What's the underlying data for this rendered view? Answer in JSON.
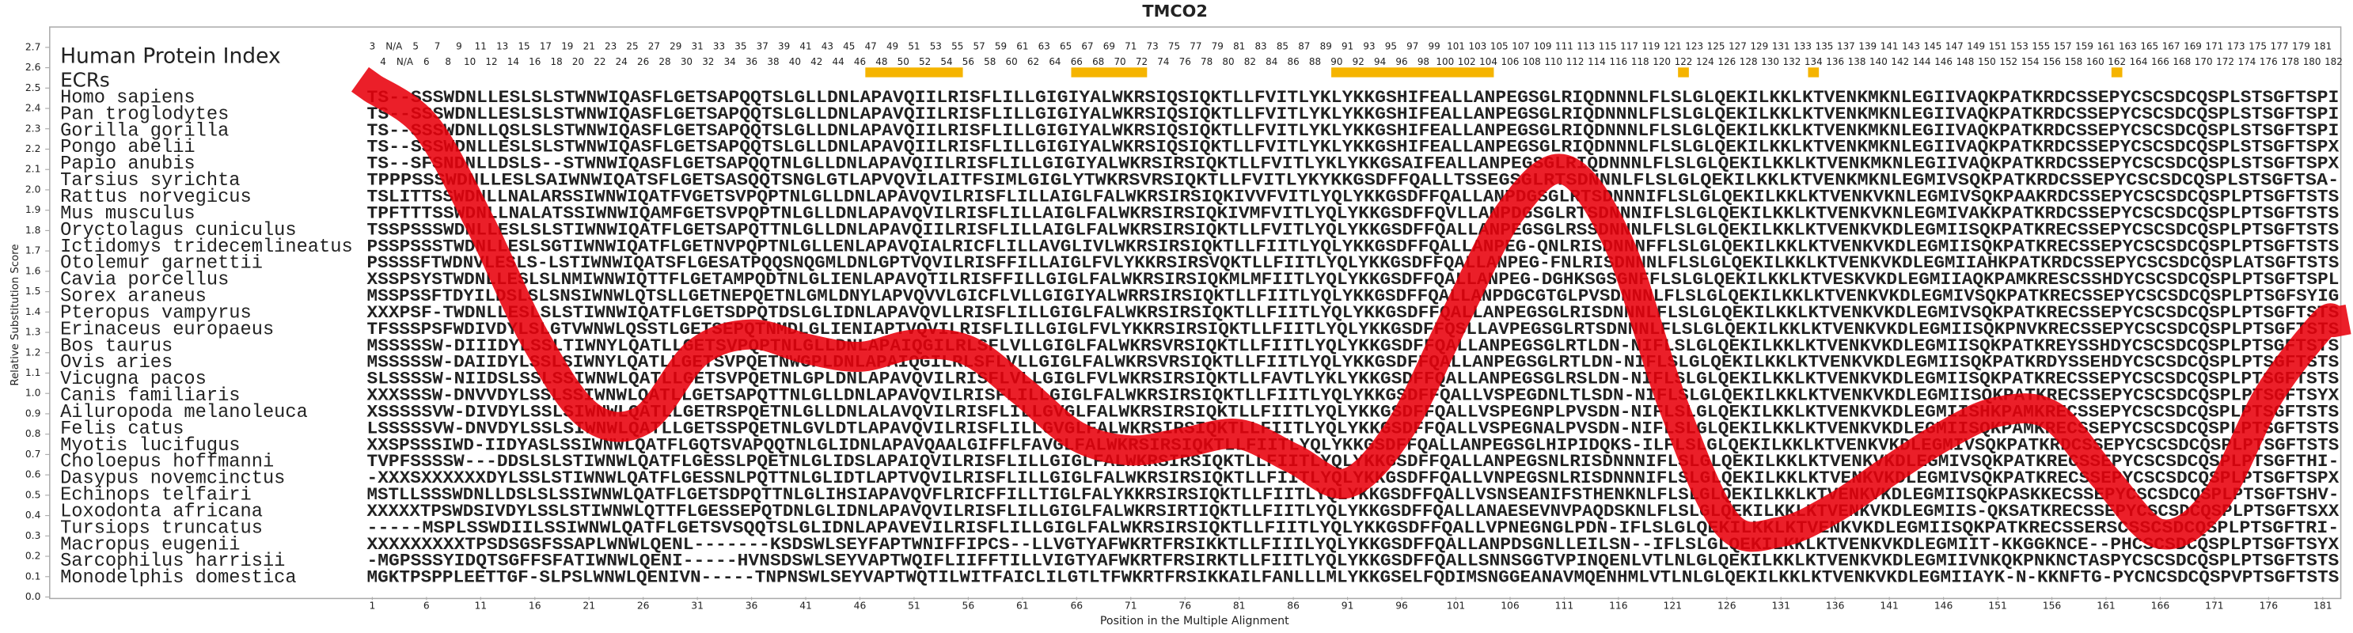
{
  "chart_data": {
    "type": "line",
    "title": "TMCO2",
    "ylabel": "Relative Substitution Score",
    "xlabel": "Position in the Multiple Alignment",
    "color": "#e8000b",
    "xlim": [
      1,
      182
    ],
    "ylim": [
      0,
      2.8
    ],
    "xticks": [
      1,
      6,
      11,
      16,
      21,
      26,
      31,
      36,
      41,
      46,
      51,
      56,
      61,
      66,
      71,
      76,
      81,
      86,
      91,
      96,
      101,
      106,
      111,
      116,
      121,
      126,
      131,
      136,
      141,
      146,
      151,
      156,
      161,
      166,
      171,
      176,
      181
    ],
    "yticks": [
      {
        "value": 0,
        "label": "0.0"
      },
      0.1,
      0.2,
      0.3,
      0.4,
      0.5,
      0.6,
      0.7,
      0.8,
      0.9,
      {
        "value": 1,
        "label": "1.0"
      },
      1.1,
      1.2,
      1.3,
      1.4,
      1.5,
      1.6,
      1.7,
      1.8,
      1.9,
      {
        "value": 2,
        "label": "2.0"
      },
      2.1,
      2.2,
      2.3,
      2.4,
      2.5,
      2.6,
      2.7
    ],
    "x": [
      1,
      6,
      11,
      16,
      21,
      26,
      31,
      36,
      41,
      46,
      51,
      56,
      61,
      66,
      71,
      76,
      81,
      86,
      91,
      96,
      101,
      106,
      111,
      116,
      121,
      126,
      131,
      136,
      141,
      146,
      151,
      156,
      161,
      166,
      171,
      176,
      181,
      182
    ],
    "values": [
      2.5,
      2.31,
      1.83,
      1.27,
      0.89,
      0.87,
      1.2,
      1.29,
      1.22,
      1.18,
      1.24,
      1.21,
      1.01,
      0.79,
      0.72,
      0.76,
      0.8,
      0.68,
      0.56,
      0.84,
      1.38,
      1.89,
      2.1,
      1.74,
      0.95,
      0.36,
      0.32,
      0.44,
      0.62,
      0.79,
      0.91,
      0.89,
      0.58,
      0.31,
      0.47,
      0.99,
      1.34,
      1.35
    ],
    "human_protein_index": {
      "label": "Human Protein Index",
      "values": [
        3,
        4,
        "N/A",
        "N/A",
        5,
        6,
        7,
        8,
        9,
        10,
        11,
        12,
        13,
        14,
        15,
        16,
        17,
        18,
        19,
        20,
        21,
        22,
        23,
        24,
        25,
        26,
        27,
        28,
        29,
        30,
        31,
        32,
        33,
        34,
        35,
        36,
        37,
        38,
        39,
        40,
        41,
        42,
        43,
        44,
        45,
        46,
        47,
        48,
        49,
        50,
        51,
        52,
        53,
        54,
        55,
        56,
        57,
        58,
        59,
        60,
        61,
        62,
        63,
        64,
        65,
        66,
        67,
        68,
        69,
        70,
        71,
        72,
        73,
        74,
        75,
        76,
        77,
        78,
        79,
        80,
        81,
        82,
        83,
        84,
        85,
        86,
        87,
        88,
        89,
        90,
        91,
        92,
        93,
        94,
        95,
        96,
        97,
        98,
        99,
        100,
        101,
        102,
        103,
        104,
        105,
        106,
        107,
        108,
        109,
        110,
        111,
        112,
        113,
        114,
        115,
        116,
        117,
        118,
        119,
        120,
        121,
        122,
        123,
        124,
        125,
        126,
        127,
        128,
        129,
        130,
        131,
        132,
        133,
        134,
        135,
        136,
        137,
        138,
        139,
        140,
        141,
        142,
        143,
        144,
        145,
        146,
        147,
        148,
        149,
        150,
        151,
        152,
        153,
        154,
        155,
        156,
        157,
        158,
        159,
        160,
        161,
        162,
        163,
        164,
        165,
        166,
        167,
        168,
        169,
        170,
        171,
        172,
        173,
        174,
        175,
        176,
        177,
        178,
        179,
        180,
        181,
        182
      ]
    },
    "ecrs": {
      "label": "ECRs",
      "color": "#f5b400",
      "ranges": [
        [
          47,
          55
        ],
        [
          66,
          72
        ],
        [
          90,
          104
        ],
        [
          122,
          122
        ],
        [
          134,
          134
        ],
        [
          162,
          162
        ]
      ]
    },
    "alignment": [
      {
        "name": "Homo sapiens",
        "sequence": "TS--SSSWDNLLESLSLSTWNWIQASFLGETSAPQQTSLGLLDNLAPAVQIILRISFLILLGIGIYALWKRSIQSIQKTLLFVITLYKLYKKGSHIFEALLANPEGSGLRIQDNNNLFLSLGLQEKILKKLKTVENKMKNLEGIIVAQKPATKRDCSSEPYCSCSDCQSPLSTSGFTSPI"
      },
      {
        "name": "Pan troglodytes",
        "sequence": "TS--SSSWDNLLESLSLSTWNWIQASFLGETSAPQQTSLGLLDNLAPAVQIILRISFLILLGIGIYALWKRSIQSIQKTLLFVITLYKLYKKGSHIFEALLANPEGSGLRIQDNNNLFLSLGLQEKILKKLKTVENKMKNLEGIIVAQKPATKRDCSSEPYCSCSDCQSPLSTSGFTSPI"
      },
      {
        "name": "Gorilla gorilla",
        "sequence": "TS--SSSWDNLLQSLSLSTWNWIQASFLGETSAPQQTSLGLLDNLAPAVQIILRISFLILLGIGIYALWKRSIQSIQKTLLFVITLYKLYKKGSHIFEALLANPEGSGLRIQDNNNLFLSLGLQEKILKKLKTVENKMKNLEGIIVAQKPATKRDCSSEPYCSCSDCQSPLSTSGFTSPI"
      },
      {
        "name": "Pongo abelii",
        "sequence": "TS--SSSWDNLLESLSLSTWNWIQASFLGETSAPQQTSLGLLDNLAPAVQIILRISFLILLGIGIYALWKRSIQSIQKTLLFVITLYKLYKKGSHIFEALLANPEGSGLRIQDNNNLFLSLGLQEKILKKLKTVENKMKNLEGIIVAQKPATKRDCSSEPYCSCSDCQSPLSTSGFTSPX"
      },
      {
        "name": "Papio anubis",
        "sequence": "TS--SFSNDNLLDSLS--STWNWIQASFLGETSAPQQTNLGLLDNLAPAVQIILRISFLILLGIGIYALWKRSIRSIQKTLLFVITLYKLYKKGSAIFEALLANPEGSGLRIQDNNNLFLSLGLQEKILKKLKTVENKMKNLEGIIVAQKPATKRDCSSEPYCSCSDCQSPLSTSGFTSPX"
      },
      {
        "name": "Tarsius syrichta",
        "sequence": "TPPPSSSWDNLLESLSAIWNWIQATSFLGETSASQQTSNGLGTLAPVQVILAITFSIMLGIGLYTWKRSVRSIQKTLLFVITLYKYKKGSDFFQALLTSSEGSGLRTSDNNNLFLSLGLQEKILKKLKTVENKMKNLEGMIVSQKPATKRDCSSEPYCSCSDCQSPLSTSGFTSA-"
      },
      {
        "name": "Rattus norvegicus",
        "sequence": "TSLITTSSWDNLLNALARSSIWNWIQATFVGETSVPQPTNLGLLDNLAPAVQVILRISFLILLAIGLFALWKRSIRSIQKIVVFVITLYQLYKKGSDFFQALLANPDGSGLRTSDNNNIFLSLGLQEKILKKLKTVENKVKNLEGMIVSQKPAAKRDCSSEPYCSCSDCQSPLPTSGFTSTS"
      },
      {
        "name": "Mus musculus",
        "sequence": "TPFTTTSSWDNLLNALATSSIWNWIQAMFGETSVPQPTNLGLLDNLAPAVQVILRISFLILLAIGLFALWKRSIRSIQKIVMFVITLYQLYKKGSDFFQVLLANPDGSGLRTSDNNNIFLSLGLQEKILKKLKTVENKVKNLEGMIVAKKPATKRDCSSEPYCSCSDCQSPLPTSGFTSTS"
      },
      {
        "name": "Oryctolagus cuniculus",
        "sequence": "TSSPSSSWDNLLESLSLSTIWNWIQATFLGETSAPQTTNLGLLDNLAPAVQIILRISFLILLAIGLFALWKRSIRSIQKTLLFVITLYQLYKKGSDFFQALLANPEGSGLRSSDNNNLFLSLGLQEKILKKLKTVENKVKDLEGMIISQKPATKRECSSEPYCSCSDCQSPLPTSGFTSTS"
      },
      {
        "name": "Ictidomys tridecemlineatus",
        "sequence": "PSSPSSSTWDNLLESLSGTIWNWIQATFLGETNVPQPTNLGLLENLAPAVQIALRICFLILLAVGLIVLWKRSIRSIQKTLLFIITLYQLYKKGSDFFQALLANPEG-QNLRISDNNNFFLSLGLQEKILKKLKTVENKVKDLEGMIISQKPATKRECSSEPYCSCSDCQSPLPTSGFTSTS"
      },
      {
        "name": "Otolemur garnettii",
        "sequence": "PSSSSFTWDNVLESLS-LSTIWNWIQATSFLGESATPQQSNQGMLDNLGPTVQVILRISFFILLAIGLFVLYKKRSIRSVQKTLLFIITLYQLYKKGSDFFQALLANPEG-FNLRISDNNNLFLSLGLQEKILKKLKTVENKVKDLEGMIIAHKPATKRDCSSEPYCSCSDCQSPLATSGFTSTS"
      },
      {
        "name": "Cavia porcellus",
        "sequence": "XSSPSYSTWDNLLESLSLNMIWNWIQTTFLGETAMPQDTNLGLIENLAPAVQTILRISFFILLGIGLFALWKRSIRSIQKMLMFIITLYQLYKKGSDFFQALLANPEG-DGHKSGSGNFFLSLGLQEKILKKLKTVESKVKDLEGMIIAQKPAMKRESCSSHDYCSCSDCQSPLPTSGFTSPL"
      },
      {
        "name": "Sorex araneus",
        "sequence": "MSSPSSFTDYILDSLSLSNSIWNWLQTSLLGETNEPQETNLGMLDNYLAPVQVVLGICFLVLLGIGIYALWRRSIRSIQKTLLFIITLYQLYKKGSDFFQALLANPDGCGTGLPVSDNNNLFLSLGLQEKILKKLKTVENKVKDLEGMIVSQKPATKRECSSEPYCSCSDCQSPLPTSGFSYIG"
      },
      {
        "name": "Pteropus vampyrus",
        "sequence": "XXXPSF-TWDNLLESLSLSTIWNWIQATFLGETSDPQTDSLGLIDNLAPAVQVLLRISFLILLGIGLFALWKRSIRSIQKTLLFIITLYQLYKKGSDFFQALLANPEGSGLRISDNNNLFLSLGLQEKILKKLKTVENKVKDLEGMIVSQKPATKRECSSEPYCSCSDCQSPLPTSGFTSTS"
      },
      {
        "name": "Erinaceus europaeus",
        "sequence": "TFSSSPSFWDIVDYLSLGTVWNWLQSSTLGETSEPQTNMDLGLIENIAPTVQVILRISFLILLGIGLFVLYKKRSIRSIQKTLLFIITLYQLYKKGSDFFQSLLAVPEGSGLRTSDNNNLFLSLGLQEKILKKLKTVENKVKDLEGMIISQKPNVKRECSSEPYCSCSDCQSPLPTSGFTSTS"
      },
      {
        "name": "Bos taurus",
        "sequence": "MSSSSSW-DIIIDYLSSLTIWNYLQATLLGETSVPQPTNLGLLDNLAPAIQGILRLSFLVLLGIGLFALWKRSVRSIQKTLLFIITLYQLYKKGSDFFQALLANPEGSGLRTLDN-NIFLSLGLQEKILKKLKTVENKVKDLEGMIISQKPATKREYSSHDYCSCSDCQSPLPTSGFTSTS"
      },
      {
        "name": "Ovis aries",
        "sequence": "MSSSSSW-DAIIDYLSSLSIWNYLQATLLGETSVPQETNWGPLDNLAPAIQGILRLSFLVLLGIGLFALWKRSVRSIQKTLLFIITLYQLYKKGSDFFQALLANPEGSGLRTLDN-NIFLSLGLQEKILKKLKTVENKVKDLEGMIISQKPATKRDYSSEHDYCSCSDCQSPLPTSGFTSTS"
      },
      {
        "name": "Vicugna pacos",
        "sequence": "SLSSSSW-NIIDSLSSLSSIWNWLQATLLGETSVPQETNLGPLDNLAPAVQVILRISFLVLLGIGLFVLWKRSIRSIQKTLLFAVTLYKLYKKGSDFFQALLANPEGSGLRSLDN-NIFLSLGLQEKILKKLKTVENKVKDLEGMIISQKPATKRECSSEPYCSCSDCQSPLPTSGFTSTS"
      },
      {
        "name": "Canis familiaris",
        "sequence": "XXXSSSW-DNVVDYLSSLSSIWNWLQATLLGETSAPQTTNLGLLDNLAPAVQVILRISFLILLGIGLFALWKRSIRSIQKTLLFIITLYQLYKKGSDFFQALLVSPEGDNLTLSDN-NIFLSLGLQEKILKKLKTVENKVKDLEGMIISQKPATKRECSSEPYCSCSDCQSPLPTSGFTSYX"
      },
      {
        "name": "Ailuropoda melanoleuca",
        "sequence": "XSSSSSVW-DIVDYLSSLSIWNWLQATLLGETRSPQETNLGLLDNLALAVQVILRISFLILLGVGLFALWKRSIRSIQKTLLFIITLYQLYKKGSDFFQALLVSPEGNPLPVSDN-NIFLSLGLQEKILKKLKTVENKVKDLEGMIISHKPAMKRECSSEPYCSCSDCQSPLPTSGFTSTS"
      },
      {
        "name": "Felis catus",
        "sequence": "LSSSSSVW-DNVDYLSSLSIWNWLQATLLGETSSPQETNLGVLDTLAPAVQVILRISFLILLGVGLFALWKRSIRSIQKTLLFIITLYQLYKKGSDFFQALLVSPEGNALPVSDN-NIFLSLGLQEKILKKLKTVENKVKDLEGMIISQKPAMKRECSSEPYCSCSDCQSPLPTSGFTSTS"
      },
      {
        "name": "Myotis lucifugus",
        "sequence": "XXSPSSSIWD-IIDYASLSSIWNWLQATFLGQTSVAPQQTNLGLIDNLAPAVQAALGIFFLFAVGLFALWKRSIRSIQKTLLFIITLYQLYKKGSDFFQALLANPEGSGLHIPIDQKS-ILFLSLGLQEKILKKLKTVENKVKDLEGMIVSQKPATKRDCSSEPYCSCSDCQSPLPTSGFTSTS"
      },
      {
        "name": "Choloepus hoffmanni",
        "sequence": "TVPFSSSSW---DDSLSLSTIWNWLQATFLGESSLPQETNLGLIDSLAPAIQVILRISFLILLGIGLFALWKRSIRSIQKTLLFIITLYQLYKKGSDFFQALLANPEGSNLRISDNNNIFLSLGLQEKILKKLKTVENKVKDLEGMIVSQKPATKRECSSEPYCSCSDCQSPLPTSGFTHI-"
      },
      {
        "name": "Dasypus novemcinctus",
        "sequence": "-XXXSXXXXXXDYLSSLSTIWNWLQATFLGESSNLPQTTNLGLIDTLAPTVQVILRISFLILLGIGLFALWKRSIRSIQKTLLFIITLYQLYKKGSDFFQALLVNPEGSNLRISDNNNIFLSLGLQEKILKKLKTVENKVKDLEGMIVSQKPATKRECSSEPYCSCSDCQSPLPTSGFTSPX"
      },
      {
        "name": "Echinops telfairi",
        "sequence": "MSTLLSSSWDNLLDSLSLSSIWNWLQATFLGETSDPQTTNLGLIHSIAPAVQVFLRICFFILLTIGLFALYKKRSIRSIQKTLLFIITLYQLYKKGSDFFQALLVSNSEANIFSTHENKNLFLSLGLQEKILKKLKTVENKVKDLEGMIISQKPASKKECSSEPYCSCSDCQSPLPTSGFTSHV-"
      },
      {
        "name": "Loxodonta africana",
        "sequence": "XXXXXTPSWDSIVDYLSSLSTIWNWLQTTFLGESSEPQTDNLGLIDNLAPAVQVILRISFLILLGIGLFALWKRSIRTIQKTLLFIITLYQLYKKGSDFFQALLANAESEVNVPAQDSKNLFLSLGLQEKILKKLKTVENKVKDLEGMIIS-QKSATKRECSSEPYCSCSDCQSPLPTSGFTSXX"
      },
      {
        "name": "Tursiops truncatus",
        "sequence": "-----MSPLSSWDIILSSIWNWLQATFLGETSVSQQTSLGLIDNLAPAVEVILRISFLILLGIGLFALWKRSIRSIQKTLLFIITLYQLYKKGSDFFQALLVPNEGNGLPDN-IFLSLGLQEKILKKLKTVENKVKDLEGMIISQKPATKRECSSERSCSSCSDCQSPLPTSGFTRI-"
      },
      {
        "name": "Macropus eugenii",
        "sequence": "XXXXXXXXXTPSDSGSFSSAPLWNWLQENL-------KSDSWLSEYFAPTWNIFFIPCS--LLVGTYAFWKRTFRSIKKTLLFIIILYQLYKKGSDFFQALLANPDSGNLLEILSN--IFLSLGLQEKILKKLKTVENKVKDLEGMIIT-KKGGKNCE--PHCSCSDCQSPLPTSGFTSYX"
      },
      {
        "name": "Sarcophilus harrisii",
        "sequence": "-MGPSSSYIDQTSGFFSFATIWNWLQENI-----HVNSDSWLSEYVAPTWQIFLIIFFTILLVIGTYAFWKRTFRSIRKTLLFIITLYQLYKKGSDFFQALLSNNSGGTVPINQENLVTLNLGLQEKILKKLKTVENKVKDLEGMIIVNKQKPNKNCTASPYCSCSDCQSPLPTSGFTSTS"
      },
      {
        "name": "Monodelphis domestica",
        "sequence": "MGKTPSPPLEETTGF-SLPSLWNWLQENIVN-----TNPNSWLSEYVAPTWQTILWITFAICLILGTLTFWKRTFRSIKKAILFANLLLMLYKKGSELFQDIMSNGGEANAVMQENHMLVTLNLGLQEKILKKLKTVENKVKDLEGMIIAYK-N-KKNFTG-PYCNCSDCQSPVPTSGFTSTS"
      }
    ]
  }
}
